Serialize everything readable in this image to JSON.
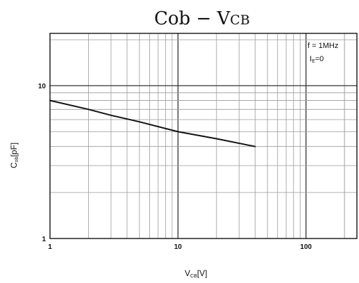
{
  "chart_data": {
    "type": "line",
    "title": "Cob − VCB",
    "title_main": "Cob  −  V",
    "title_sub": "CB",
    "xlabel_main": "V",
    "xlabel_sub": "CB",
    "xlabel_unit": "[V]",
    "ylabel_main": "C",
    "ylabel_sub": "ob",
    "ylabel_unit": "[pF]",
    "x_scale": "log",
    "y_scale": "log",
    "xlim": [
      1,
      250
    ],
    "ylim": [
      1,
      22
    ],
    "grid": true,
    "x_ticks": [
      {
        "value": 1,
        "label": "1"
      },
      {
        "value": 10,
        "label": "10"
      },
      {
        "value": 100,
        "label": "100"
      }
    ],
    "y_ticks": [
      {
        "value": 1,
        "label": "1"
      },
      {
        "value": 10,
        "label": "10"
      }
    ],
    "annotations": {
      "freq": "f = 1MHz",
      "ie_main": "I",
      "ie_sub": "E",
      "ie_value": "=0"
    },
    "series": [
      {
        "x": [
          1,
          2,
          3,
          5,
          10,
          20,
          40
        ],
        "y": [
          8.0,
          7.0,
          6.4,
          5.8,
          5.0,
          4.5,
          4.0
        ]
      }
    ]
  }
}
